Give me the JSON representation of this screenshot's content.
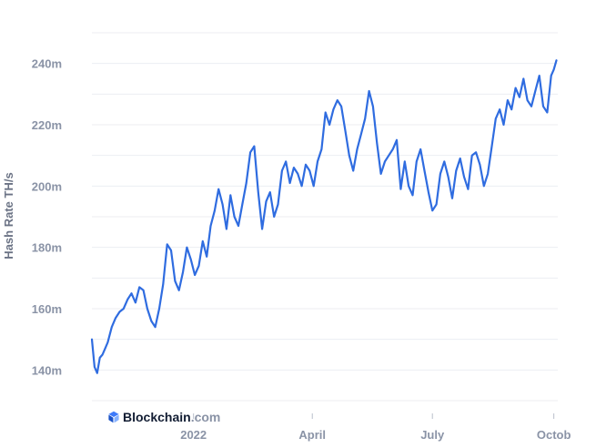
{
  "chart_data": {
    "type": "line",
    "title": "",
    "xlabel": "",
    "ylabel": "Hash Rate TH/s",
    "ylim": [
      130,
      250
    ],
    "yticks": [
      {
        "value": 140,
        "label": "140m"
      },
      {
        "value": 160,
        "label": "160m"
      },
      {
        "value": 180,
        "label": "180m"
      },
      {
        "value": 200,
        "label": "200m"
      },
      {
        "value": 220,
        "label": "220m"
      },
      {
        "value": 240,
        "label": "240m"
      }
    ],
    "xlim": [
      "2021-10-16",
      "2022-10-04"
    ],
    "xticks": [
      {
        "value": "2022-01-01",
        "label": "2022"
      },
      {
        "value": "2022-04-01",
        "label": "April"
      },
      {
        "value": "2022-07-01",
        "label": "July"
      },
      {
        "value": "2022-10-01",
        "label": "Octob"
      }
    ],
    "grid": true,
    "legend": "none",
    "line_color": "#2f6ce0",
    "series": [
      {
        "x": [
          "2021-10-16",
          "2021-10-18",
          "2021-10-20",
          "2021-10-22",
          "2021-10-24",
          "2021-10-26",
          "2021-10-28",
          "2021-10-31",
          "2021-11-03",
          "2021-11-06",
          "2021-11-09",
          "2021-11-12",
          "2021-11-15",
          "2021-11-18",
          "2021-11-21",
          "2021-11-24",
          "2021-11-27",
          "2021-11-30",
          "2021-12-03",
          "2021-12-06",
          "2021-12-09",
          "2021-12-12",
          "2021-12-15",
          "2021-12-18",
          "2021-12-21",
          "2021-12-24",
          "2021-12-27",
          "2021-12-30",
          "2022-01-02",
          "2022-01-05",
          "2022-01-08",
          "2022-01-11",
          "2022-01-14",
          "2022-01-17",
          "2022-01-20",
          "2022-01-23",
          "2022-01-26",
          "2022-01-29",
          "2022-02-01",
          "2022-02-04",
          "2022-02-07",
          "2022-02-10",
          "2022-02-13",
          "2022-02-16",
          "2022-02-19",
          "2022-02-22",
          "2022-02-25",
          "2022-02-28",
          "2022-03-03",
          "2022-03-06",
          "2022-03-09",
          "2022-03-12",
          "2022-03-15",
          "2022-03-18",
          "2022-03-21",
          "2022-03-24",
          "2022-03-27",
          "2022-03-30",
          "2022-04-02",
          "2022-04-05",
          "2022-04-08",
          "2022-04-11",
          "2022-04-14",
          "2022-04-17",
          "2022-04-20",
          "2022-04-23",
          "2022-04-26",
          "2022-04-29",
          "2022-05-02",
          "2022-05-05",
          "2022-05-08",
          "2022-05-11",
          "2022-05-14",
          "2022-05-17",
          "2022-05-20",
          "2022-05-23",
          "2022-05-26",
          "2022-05-29",
          "2022-06-01",
          "2022-06-04",
          "2022-06-07",
          "2022-06-10",
          "2022-06-13",
          "2022-06-16",
          "2022-06-19",
          "2022-06-22",
          "2022-06-25",
          "2022-06-28",
          "2022-07-01",
          "2022-07-04",
          "2022-07-07",
          "2022-07-10",
          "2022-07-13",
          "2022-07-16",
          "2022-07-19",
          "2022-07-22",
          "2022-07-25",
          "2022-07-28",
          "2022-07-31",
          "2022-08-03",
          "2022-08-06",
          "2022-08-09",
          "2022-08-12",
          "2022-08-15",
          "2022-08-18",
          "2022-08-21",
          "2022-08-24",
          "2022-08-27",
          "2022-08-30",
          "2022-09-02",
          "2022-09-05",
          "2022-09-08",
          "2022-09-11",
          "2022-09-14",
          "2022-09-17",
          "2022-09-20",
          "2022-09-23",
          "2022-09-26",
          "2022-09-29",
          "2022-10-01",
          "2022-10-03"
        ],
        "y": [
          150,
          141,
          139,
          144,
          145,
          147,
          149,
          154,
          157,
          159,
          160,
          163,
          165,
          162,
          167,
          166,
          160,
          156,
          154,
          160,
          168,
          181,
          179,
          169,
          166,
          172,
          180,
          176,
          171,
          174,
          182,
          177,
          187,
          192,
          199,
          194,
          186,
          197,
          190,
          187,
          194,
          201,
          211,
          213,
          198,
          186,
          195,
          198,
          190,
          194,
          205,
          208,
          201,
          206,
          204,
          200,
          207,
          205,
          200,
          208,
          212,
          224,
          220,
          225,
          228,
          226,
          218,
          210,
          205,
          212,
          217,
          222,
          231,
          226,
          214,
          204,
          208,
          210,
          212,
          215,
          199,
          208,
          200,
          197,
          208,
          212,
          205,
          198,
          192,
          194,
          204,
          208,
          203,
          196,
          205,
          209,
          203,
          199,
          210,
          211,
          207,
          200,
          204,
          213,
          222,
          225,
          220,
          228,
          225,
          232,
          229,
          235,
          228,
          226,
          231,
          236,
          226,
          224,
          236,
          238,
          241
        ]
      }
    ]
  },
  "brand": {
    "name": "Blockchain",
    "suffix": ".com"
  }
}
